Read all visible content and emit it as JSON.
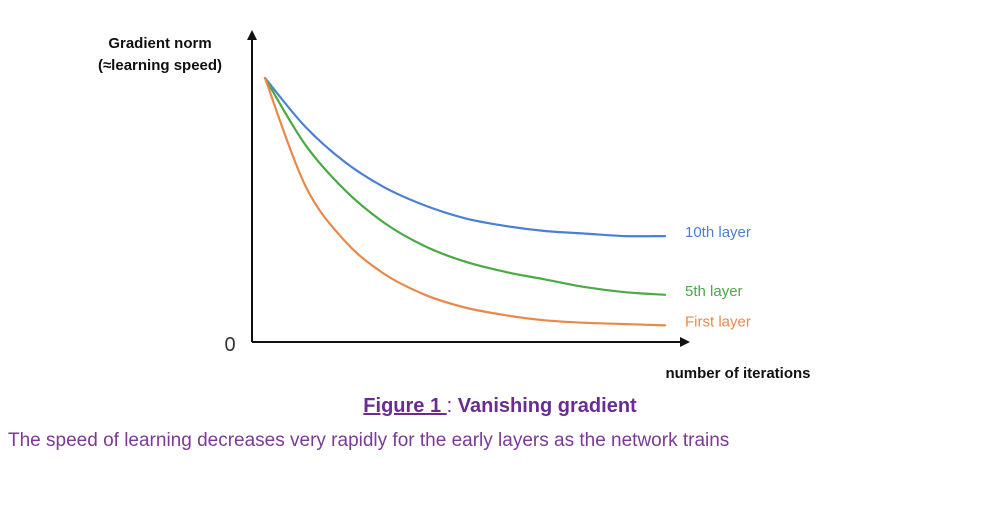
{
  "chart_data": {
    "type": "line",
    "ylabel_line1": "Gradient norm",
    "ylabel_line2": "(≈learning speed)",
    "xlabel": "number of iterations",
    "y_zero_label": "0",
    "xlim": [
      0,
      100
    ],
    "ylim": [
      0,
      100
    ],
    "grid": false,
    "series": [
      {
        "name": "10th layer",
        "color": "#4a7fd4",
        "x": [
          0,
          10,
          20,
          30,
          40,
          50,
          60,
          70,
          80,
          90,
          100
        ],
        "y": [
          100,
          81,
          67,
          57,
          50,
          45,
          42,
          40,
          39,
          38,
          38
        ]
      },
      {
        "name": "5th layer",
        "color": "#4aaa44",
        "x": [
          0,
          10,
          20,
          30,
          40,
          50,
          60,
          70,
          80,
          90,
          100
        ],
        "y": [
          100,
          74,
          56,
          43,
          34,
          28,
          24,
          21,
          18,
          16,
          15
        ]
      },
      {
        "name": "First layer",
        "color": "#e8894a",
        "x": [
          0,
          10,
          20,
          30,
          40,
          50,
          60,
          70,
          80,
          90,
          100
        ],
        "y": [
          100,
          58,
          36,
          23,
          15,
          10,
          7,
          5,
          4,
          3.5,
          3
        ]
      }
    ]
  },
  "caption": {
    "figure_ref": "Figure 1 ",
    "separator": ": ",
    "title": "Vanishing gradient",
    "description": "The speed of learning decreases very rapidly for the early layers as the network trains"
  }
}
